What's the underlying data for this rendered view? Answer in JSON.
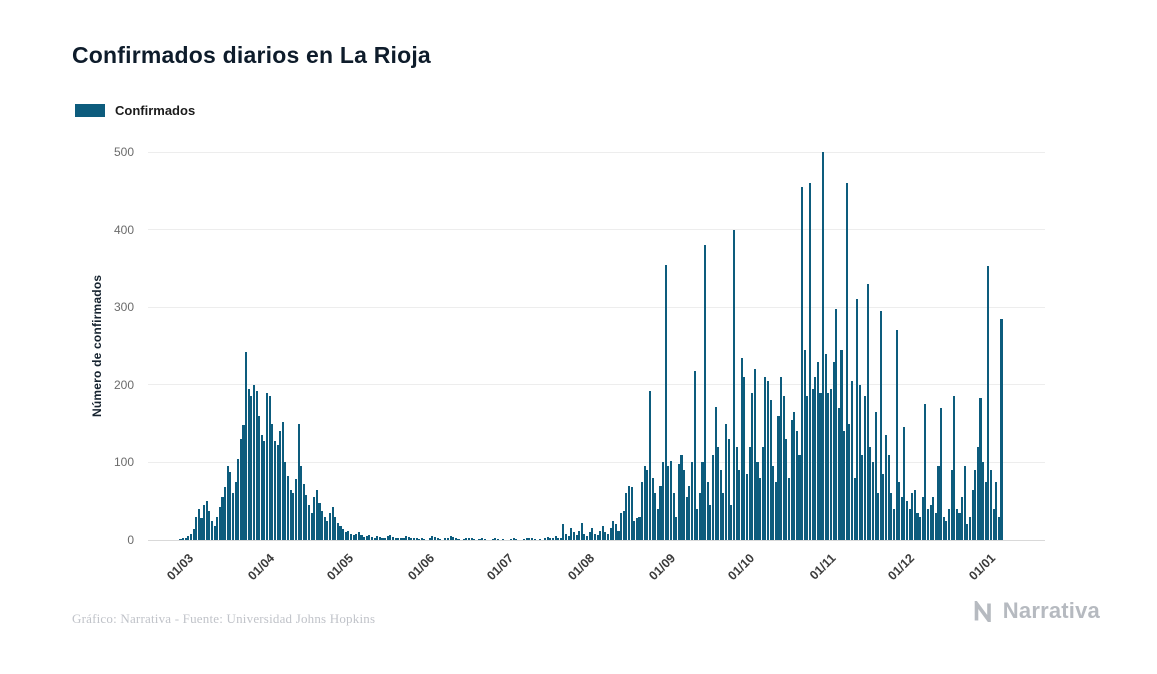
{
  "title": "Confirmados diarios en La Rioja",
  "legend": {
    "label": "Confirmados",
    "color": "#0d5c7d"
  },
  "footer": {
    "credit": "Gráfico: Narrativa - Fuente: Universidad Johns Hopkins",
    "brand": "Narrativa"
  },
  "chart_data": {
    "type": "bar",
    "title": "Confirmados diarios en La Rioja",
    "series_name": "Confirmados",
    "xlabel": "",
    "ylabel": "Número de confirmados",
    "ylim": [
      0,
      500
    ],
    "yticks": [
      0,
      100,
      200,
      300,
      400,
      500
    ],
    "grid": "horizontal",
    "legend_position": "top-left",
    "bar_color": "#0d5c7d",
    "x_tick_labels": [
      "01/03",
      "01/04",
      "01/05",
      "01/06",
      "01/07",
      "01/08",
      "01/09",
      "01/10",
      "01/11",
      "01/12",
      "01/01"
    ],
    "x_tick_day_indices": [
      0,
      31,
      61,
      92,
      122,
      153,
      184,
      214,
      245,
      275,
      306
    ],
    "x_unit": "day (daily values from 01/03 to 08/01)",
    "values": [
      1,
      2,
      3,
      5,
      8,
      14,
      30,
      40,
      28,
      45,
      50,
      38,
      25,
      18,
      30,
      42,
      55,
      68,
      95,
      88,
      60,
      75,
      105,
      130,
      148,
      242,
      195,
      185,
      200,
      192,
      160,
      135,
      128,
      190,
      186,
      150,
      128,
      122,
      140,
      152,
      100,
      82,
      65,
      60,
      78,
      150,
      95,
      72,
      58,
      45,
      35,
      55,
      65,
      48,
      38,
      30,
      25,
      35,
      42,
      30,
      22,
      18,
      14,
      10,
      12,
      8,
      6,
      8,
      10,
      6,
      4,
      5,
      6,
      4,
      3,
      5,
      4,
      2,
      3,
      5,
      6,
      4,
      3,
      2,
      2,
      3,
      5,
      4,
      3,
      2,
      2,
      1,
      2,
      1,
      0,
      3,
      5,
      4,
      2,
      1,
      0,
      2,
      3,
      5,
      4,
      2,
      1,
      0,
      1,
      2,
      3,
      2,
      1,
      0,
      1,
      2,
      1,
      0,
      0,
      1,
      2,
      1,
      0,
      1,
      0,
      0,
      1,
      2,
      1,
      0,
      0,
      1,
      2,
      3,
      2,
      1,
      0,
      1,
      0,
      2,
      4,
      3,
      2,
      5,
      3,
      2,
      20,
      8,
      5,
      15,
      10,
      6,
      12,
      22,
      8,
      5,
      10,
      15,
      8,
      6,
      12,
      18,
      10,
      8,
      15,
      25,
      20,
      12,
      35,
      38,
      60,
      70,
      68,
      25,
      28,
      30,
      75,
      95,
      90,
      192,
      80,
      60,
      40,
      70,
      100,
      355,
      95,
      102,
      60,
      30,
      98,
      110,
      90,
      55,
      70,
      100,
      218,
      40,
      60,
      100,
      380,
      75,
      45,
      110,
      172,
      120,
      90,
      60,
      150,
      130,
      45,
      400,
      120,
      90,
      235,
      210,
      85,
      120,
      190,
      220,
      100,
      80,
      120,
      210,
      205,
      180,
      95,
      75,
      160,
      210,
      185,
      130,
      80,
      155,
      165,
      140,
      110,
      455,
      245,
      185,
      460,
      195,
      210,
      230,
      190,
      500,
      240,
      190,
      195,
      230,
      298,
      170,
      245,
      140,
      460,
      150,
      205,
      80,
      310,
      200,
      110,
      185,
      330,
      120,
      100,
      165,
      60,
      295,
      85,
      135,
      110,
      60,
      40,
      270,
      75,
      55,
      145,
      50,
      40,
      60,
      65,
      35,
      30,
      55,
      175,
      40,
      45,
      55,
      35,
      95,
      170,
      30,
      25,
      40,
      90,
      185,
      40,
      35,
      55,
      95,
      20,
      30,
      65,
      90,
      120,
      183,
      100,
      75,
      353,
      90,
      40,
      75,
      30,
      285
    ]
  }
}
